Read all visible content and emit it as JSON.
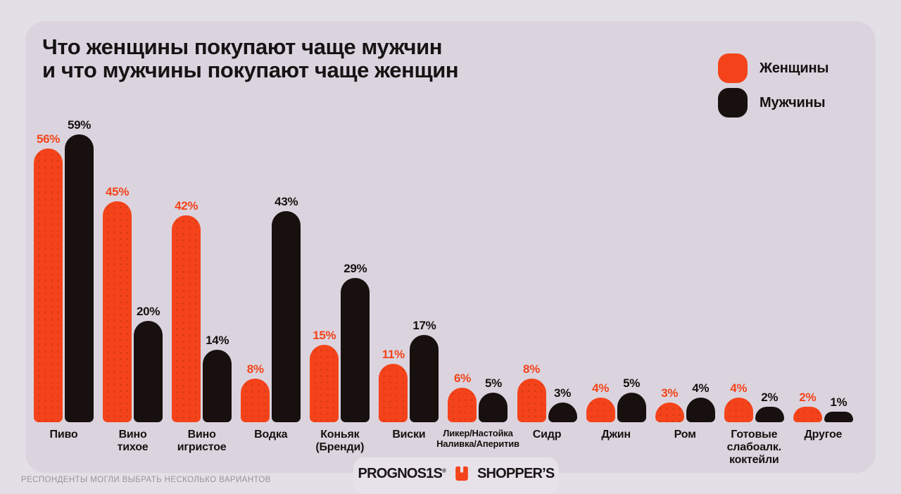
{
  "title": {
    "line1": "Что женщины покупают чаще мужчин",
    "line2": "и что мужчины покупают чаще женщин"
  },
  "legend": [
    {
      "label": "Женщины",
      "color": "#F4431A"
    },
    {
      "label": "Мужчины",
      "color": "#17100F"
    }
  ],
  "chart_data": {
    "type": "bar",
    "title": "Что женщины покупают чаще мужчин и что мужчины покупают чаще женщин",
    "categories": [
      "Пиво",
      "Вино\nтихое",
      "Вино\nигристое",
      "Водка",
      "Коньяк\n(Бренди)",
      "Виски",
      "Ликер/Настойка\nНаливка/Аперитив",
      "Сидр",
      "Джин",
      "Ром",
      "Готовые\nслабоалк.\nкоктейли",
      "Другое"
    ],
    "series": [
      {
        "name": "Женщины",
        "color": "#F4431A",
        "values": [
          56,
          45,
          42,
          8,
          15,
          11,
          6,
          8,
          4,
          3,
          4,
          2
        ]
      },
      {
        "name": "Мужчины",
        "color": "#17100F",
        "values": [
          59,
          20,
          14,
          43,
          29,
          17,
          5,
          3,
          5,
          4,
          2,
          1
        ]
      }
    ],
    "value_suffix": "%",
    "ylim": [
      0,
      60
    ],
    "grid": false,
    "legend_position": "top-right",
    "data_labels": true
  },
  "footer": {
    "note": "РЕСПОНДЕНТЫ МОГЛИ ВЫБРАТЬ НЕСКОЛЬКО ВАРИАНТОВ",
    "logos": {
      "prognosis": "PROGNOS1S",
      "reg_mark": "®",
      "shoppers": "SHOPPER’S"
    }
  },
  "colors": {
    "women": "#F4431A",
    "men": "#17100F",
    "background": "#E3DFE7",
    "card": "#DBD4DE",
    "logo_tab": "#E7E2EA",
    "note_gray": "#98939E",
    "title_text": "#151314"
  }
}
